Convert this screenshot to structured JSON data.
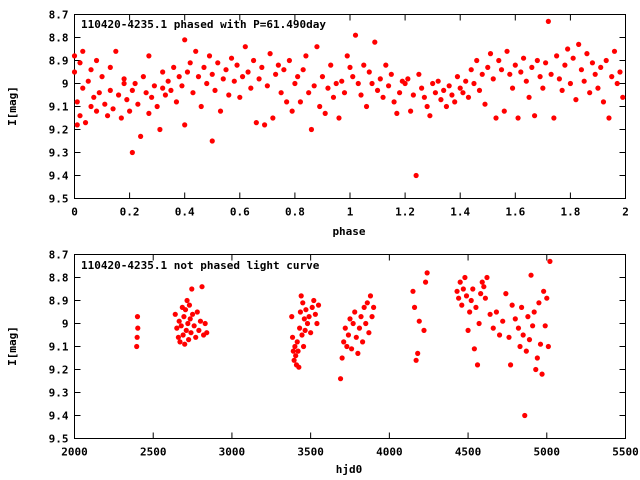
{
  "chart_data": [
    {
      "type": "scatter",
      "title": "110420-4235.1 phased with P=61.490day",
      "xlabel": "phase",
      "ylabel": "I[mag]",
      "xlim": [
        0,
        2
      ],
      "ylim": [
        9.5,
        8.7
      ],
      "y_inverted": true,
      "xticks": [
        "0",
        "0.2",
        "0.4",
        "0.6",
        "0.8",
        "1",
        "1.2",
        "1.4",
        "1.6",
        "1.8",
        "2"
      ],
      "yticks": [
        "8.7",
        "8.8",
        "8.9",
        "9",
        "9.1",
        "9.2",
        "9.3",
        "9.4",
        "9.5"
      ],
      "marker_color": "#ff0000",
      "points": [
        [
          0.0,
          8.88
        ],
        [
          0.0,
          8.95
        ],
        [
          0.01,
          9.08
        ],
        [
          0.01,
          9.18
        ],
        [
          0.02,
          8.91
        ],
        [
          0.02,
          9.14
        ],
        [
          0.03,
          8.86
        ],
        [
          0.03,
          9.02
        ],
        [
          0.04,
          9.17
        ],
        [
          0.05,
          8.99
        ],
        [
          0.06,
          9.1
        ],
        [
          0.06,
          8.94
        ],
        [
          0.07,
          9.06
        ],
        [
          0.08,
          9.12
        ],
        [
          0.08,
          8.9
        ],
        [
          0.09,
          9.04
        ],
        [
          0.1,
          8.97
        ],
        [
          0.11,
          9.09
        ],
        [
          0.12,
          9.14
        ],
        [
          0.13,
          8.93
        ],
        [
          0.13,
          9.03
        ],
        [
          0.14,
          9.11
        ],
        [
          0.15,
          8.86
        ],
        [
          0.16,
          9.05
        ],
        [
          0.17,
          9.15
        ],
        [
          0.18,
          9.0
        ],
        [
          0.18,
          8.98
        ],
        [
          0.19,
          9.07
        ],
        [
          0.2,
          9.12
        ],
        [
          0.21,
          9.3
        ],
        [
          0.21,
          9.03
        ],
        [
          0.22,
          9.0
        ],
        [
          0.23,
          9.09
        ],
        [
          0.24,
          9.23
        ],
        [
          0.25,
          8.97
        ],
        [
          0.26,
          9.04
        ],
        [
          0.27,
          9.13
        ],
        [
          0.27,
          8.88
        ],
        [
          0.28,
          9.06
        ],
        [
          0.29,
          9.01
        ],
        [
          0.3,
          9.1
        ],
        [
          0.31,
          9.2
        ],
        [
          0.32,
          8.95
        ],
        [
          0.32,
          9.02
        ],
        [
          0.33,
          9.05
        ],
        [
          0.34,
          8.99
        ],
        [
          0.35,
          9.03
        ],
        [
          0.36,
          8.93
        ],
        [
          0.37,
          9.08
        ],
        [
          0.38,
          8.97
        ],
        [
          0.39,
          9.01
        ],
        [
          0.4,
          8.81
        ],
        [
          0.4,
          9.18
        ],
        [
          0.41,
          8.95
        ],
        [
          0.42,
          8.91
        ],
        [
          0.43,
          9.04
        ],
        [
          0.44,
          8.86
        ],
        [
          0.45,
          8.97
        ],
        [
          0.46,
          9.1
        ],
        [
          0.47,
          8.93
        ],
        [
          0.48,
          9.0
        ],
        [
          0.49,
          8.88
        ],
        [
          0.5,
          9.25
        ],
        [
          0.5,
          8.96
        ],
        [
          0.51,
          9.03
        ],
        [
          0.52,
          8.91
        ],
        [
          0.53,
          9.12
        ],
        [
          0.54,
          8.98
        ],
        [
          0.55,
          8.94
        ],
        [
          0.56,
          9.05
        ],
        [
          0.57,
          8.89
        ],
        [
          0.58,
          8.99
        ],
        [
          0.59,
          8.92
        ],
        [
          0.6,
          9.06
        ],
        [
          0.61,
          8.97
        ],
        [
          0.62,
          8.84
        ],
        [
          0.63,
          8.95
        ],
        [
          0.64,
          9.02
        ],
        [
          0.65,
          8.9
        ],
        [
          0.66,
          9.17
        ],
        [
          0.67,
          8.98
        ],
        [
          0.68,
          8.93
        ],
        [
          0.69,
          9.18
        ],
        [
          0.7,
          9.01
        ],
        [
          0.71,
          8.87
        ],
        [
          0.72,
          9.15
        ],
        [
          0.73,
          8.96
        ],
        [
          0.74,
          8.92
        ],
        [
          0.75,
          9.04
        ],
        [
          0.76,
          8.94
        ],
        [
          0.77,
          9.08
        ],
        [
          0.78,
          8.9
        ],
        [
          0.79,
          9.12
        ],
        [
          0.8,
          9.0
        ],
        [
          0.81,
          8.97
        ],
        [
          0.82,
          9.08
        ],
        [
          0.83,
          8.94
        ],
        [
          0.84,
          8.88
        ],
        [
          0.85,
          9.04
        ],
        [
          0.86,
          9.2
        ],
        [
          0.87,
          9.01
        ],
        [
          0.88,
          8.84
        ],
        [
          0.89,
          9.1
        ],
        [
          0.9,
          8.97
        ],
        [
          0.91,
          9.13
        ],
        [
          0.92,
          9.02
        ],
        [
          0.93,
          8.92
        ],
        [
          0.94,
          9.06
        ],
        [
          0.95,
          9.0
        ],
        [
          0.96,
          9.15
        ],
        [
          0.97,
          8.99
        ],
        [
          0.98,
          9.04
        ],
        [
          0.99,
          8.88
        ],
        [
          1.0,
          8.93
        ],
        [
          1.01,
          8.97
        ],
        [
          1.02,
          8.79
        ],
        [
          1.03,
          9.0
        ],
        [
          1.04,
          9.05
        ],
        [
          1.05,
          8.92
        ],
        [
          1.06,
          9.1
        ],
        [
          1.07,
          8.95
        ],
        [
          1.08,
          9.0
        ],
        [
          1.09,
          8.82
        ],
        [
          1.1,
          9.03
        ],
        [
          1.11,
          8.98
        ],
        [
          1.12,
          9.06
        ],
        [
          1.13,
          8.92
        ],
        [
          1.14,
          9.01
        ],
        [
          1.15,
          8.96
        ],
        [
          1.16,
          9.08
        ],
        [
          1.17,
          9.13
        ],
        [
          1.18,
          9.04
        ],
        [
          1.19,
          8.99
        ],
        [
          1.2,
          9.0
        ],
        [
          1.21,
          8.98
        ],
        [
          1.22,
          9.12
        ],
        [
          1.23,
          9.05
        ],
        [
          1.24,
          9.4
        ],
        [
          1.25,
          8.96
        ],
        [
          1.26,
          9.02
        ],
        [
          1.27,
          9.06
        ],
        [
          1.28,
          9.1
        ],
        [
          1.29,
          9.14
        ],
        [
          1.3,
          9.0
        ],
        [
          1.31,
          9.04
        ],
        [
          1.32,
          8.99
        ],
        [
          1.33,
          9.07
        ],
        [
          1.34,
          9.03
        ],
        [
          1.35,
          9.1
        ],
        [
          1.36,
          9.01
        ],
        [
          1.37,
          9.05
        ],
        [
          1.38,
          9.08
        ],
        [
          1.39,
          8.97
        ],
        [
          1.4,
          9.02
        ],
        [
          1.41,
          9.04
        ],
        [
          1.42,
          8.99
        ],
        [
          1.43,
          9.06
        ],
        [
          1.44,
          8.94
        ],
        [
          1.45,
          9.0
        ],
        [
          1.46,
          8.9
        ],
        [
          1.47,
          9.03
        ],
        [
          1.48,
          8.96
        ],
        [
          1.49,
          9.09
        ],
        [
          1.5,
          8.93
        ],
        [
          1.51,
          8.87
        ],
        [
          1.52,
          8.98
        ],
        [
          1.53,
          9.15
        ],
        [
          1.54,
          8.9
        ],
        [
          1.55,
          8.94
        ],
        [
          1.56,
          9.12
        ],
        [
          1.57,
          8.86
        ],
        [
          1.58,
          8.96
        ],
        [
          1.59,
          9.02
        ],
        [
          1.6,
          8.92
        ],
        [
          1.61,
          9.15
        ],
        [
          1.62,
          8.95
        ],
        [
          1.63,
          8.89
        ],
        [
          1.64,
          8.99
        ],
        [
          1.65,
          9.06
        ],
        [
          1.66,
          8.93
        ],
        [
          1.67,
          9.14
        ],
        [
          1.68,
          8.9
        ],
        [
          1.69,
          8.97
        ],
        [
          1.7,
          9.02
        ],
        [
          1.71,
          8.91
        ],
        [
          1.72,
          8.73
        ],
        [
          1.73,
          8.96
        ],
        [
          1.74,
          9.15
        ],
        [
          1.75,
          8.88
        ],
        [
          1.76,
          8.98
        ],
        [
          1.77,
          9.03
        ],
        [
          1.78,
          8.92
        ],
        [
          1.79,
          8.85
        ],
        [
          1.8,
          9.0
        ],
        [
          1.81,
          8.89
        ],
        [
          1.82,
          9.07
        ],
        [
          1.83,
          8.83
        ],
        [
          1.84,
          8.94
        ],
        [
          1.85,
          8.99
        ],
        [
          1.86,
          8.87
        ],
        [
          1.87,
          9.04
        ],
        [
          1.88,
          8.91
        ],
        [
          1.89,
          8.96
        ],
        [
          1.9,
          9.02
        ],
        [
          1.91,
          8.93
        ],
        [
          1.92,
          9.08
        ],
        [
          1.93,
          8.9
        ],
        [
          1.94,
          9.15
        ],
        [
          1.95,
          8.97
        ],
        [
          1.96,
          8.86
        ],
        [
          1.97,
          9.0
        ],
        [
          1.98,
          8.95
        ],
        [
          1.99,
          9.06
        ]
      ]
    },
    {
      "type": "scatter",
      "title": "110420-4235.1 not phased light curve",
      "xlabel": "hjd0",
      "ylabel": "I[mag]",
      "xlim": [
        2000,
        5500
      ],
      "ylim": [
        9.5,
        8.7
      ],
      "y_inverted": true,
      "xticks": [
        "2000",
        "2500",
        "3000",
        "3500",
        "4000",
        "4500",
        "5000",
        "5500"
      ],
      "yticks": [
        "8.7",
        "8.8",
        "8.9",
        "9",
        "9.1",
        "9.2",
        "9.3",
        "9.4",
        "9.5"
      ],
      "marker_color": "#ff0000",
      "points": [
        [
          2395,
          9.1
        ],
        [
          2398,
          9.06
        ],
        [
          2400,
          8.97
        ],
        [
          2402,
          9.02
        ],
        [
          2640,
          8.96
        ],
        [
          2650,
          9.02
        ],
        [
          2660,
          9.06
        ],
        [
          2665,
          8.99
        ],
        [
          2670,
          9.08
        ],
        [
          2678,
          9.01
        ],
        [
          2685,
          8.93
        ],
        [
          2690,
          9.05
        ],
        [
          2695,
          8.97
        ],
        [
          2700,
          9.09
        ],
        [
          2705,
          8.94
        ],
        [
          2710,
          9.03
        ],
        [
          2715,
          8.9
        ],
        [
          2720,
          9.0
        ],
        [
          2725,
          9.07
        ],
        [
          2730,
          8.92
        ],
        [
          2735,
          8.98
        ],
        [
          2740,
          9.04
        ],
        [
          2745,
          8.85
        ],
        [
          2750,
          8.96
        ],
        [
          2760,
          9.01
        ],
        [
          2770,
          9.06
        ],
        [
          2780,
          8.95
        ],
        [
          2790,
          9.03
        ],
        [
          2800,
          8.99
        ],
        [
          2810,
          8.84
        ],
        [
          2820,
          9.05
        ],
        [
          2830,
          9.0
        ],
        [
          2840,
          9.04
        ],
        [
          3380,
          8.97
        ],
        [
          3385,
          9.06
        ],
        [
          3390,
          9.12
        ],
        [
          3395,
          9.16
        ],
        [
          3400,
          9.1
        ],
        [
          3405,
          9.14
        ],
        [
          3410,
          9.18
        ],
        [
          3415,
          9.08
        ],
        [
          3420,
          9.12
        ],
        [
          3425,
          9.19
        ],
        [
          3430,
          9.02
        ],
        [
          3435,
          8.95
        ],
        [
          3440,
          8.88
        ],
        [
          3445,
          9.05
        ],
        [
          3450,
          8.91
        ],
        [
          3455,
          9.1
        ],
        [
          3460,
          8.98
        ],
        [
          3465,
          9.03
        ],
        [
          3470,
          8.94
        ],
        [
          3480,
          9.0
        ],
        [
          3490,
          8.97
        ],
        [
          3500,
          9.04
        ],
        [
          3510,
          8.93
        ],
        [
          3520,
          8.9
        ],
        [
          3530,
          8.96
        ],
        [
          3540,
          9.0
        ],
        [
          3550,
          8.92
        ],
        [
          3690,
          9.24
        ],
        [
          3700,
          9.15
        ],
        [
          3710,
          9.08
        ],
        [
          3720,
          9.02
        ],
        [
          3730,
          9.1
        ],
        [
          3740,
          9.05
        ],
        [
          3750,
          8.98
        ],
        [
          3760,
          9.11
        ],
        [
          3770,
          9.0
        ],
        [
          3780,
          8.95
        ],
        [
          3790,
          9.06
        ],
        [
          3800,
          9.13
        ],
        [
          3810,
          9.02
        ],
        [
          3820,
          8.97
        ],
        [
          3830,
          9.08
        ],
        [
          3840,
          8.93
        ],
        [
          3850,
          9.0
        ],
        [
          3860,
          8.91
        ],
        [
          3870,
          9.04
        ],
        [
          3880,
          8.88
        ],
        [
          3890,
          8.97
        ],
        [
          3900,
          8.93
        ],
        [
          4150,
          8.86
        ],
        [
          4160,
          8.93
        ],
        [
          4170,
          9.16
        ],
        [
          4180,
          9.13
        ],
        [
          4190,
          8.99
        ],
        [
          4220,
          9.03
        ],
        [
          4230,
          8.82
        ],
        [
          4240,
          8.78
        ],
        [
          4430,
          8.86
        ],
        [
          4440,
          8.89
        ],
        [
          4450,
          8.82
        ],
        [
          4460,
          8.92
        ],
        [
          4470,
          8.85
        ],
        [
          4480,
          8.8
        ],
        [
          4490,
          8.88
        ],
        [
          4500,
          9.03
        ],
        [
          4510,
          8.95
        ],
        [
          4520,
          8.9
        ],
        [
          4530,
          8.85
        ],
        [
          4540,
          9.11
        ],
        [
          4550,
          8.93
        ],
        [
          4560,
          9.18
        ],
        [
          4570,
          9.0
        ],
        [
          4580,
          8.87
        ],
        [
          4590,
          8.82
        ],
        [
          4600,
          8.84
        ],
        [
          4610,
          8.89
        ],
        [
          4620,
          8.8
        ],
        [
          4640,
          8.96
        ],
        [
          4660,
          9.02
        ],
        [
          4680,
          8.95
        ],
        [
          4700,
          9.05
        ],
        [
          4720,
          8.99
        ],
        [
          4740,
          8.87
        ],
        [
          4760,
          9.06
        ],
        [
          4770,
          9.18
        ],
        [
          4780,
          8.92
        ],
        [
          4800,
          8.98
        ],
        [
          4820,
          9.02
        ],
        [
          4830,
          9.1
        ],
        [
          4840,
          8.93
        ],
        [
          4850,
          9.05
        ],
        [
          4860,
          9.4
        ],
        [
          4870,
          9.12
        ],
        [
          4880,
          8.97
        ],
        [
          4890,
          9.07
        ],
        [
          4900,
          8.79
        ],
        [
          4910,
          9.01
        ],
        [
          4920,
          8.95
        ],
        [
          4930,
          9.2
        ],
        [
          4940,
          9.15
        ],
        [
          4950,
          8.91
        ],
        [
          4960,
          9.09
        ],
        [
          4970,
          9.22
        ],
        [
          4980,
          8.86
        ],
        [
          4990,
          9.01
        ],
        [
          5000,
          8.89
        ],
        [
          5010,
          9.1
        ],
        [
          5020,
          8.73
        ]
      ]
    }
  ]
}
